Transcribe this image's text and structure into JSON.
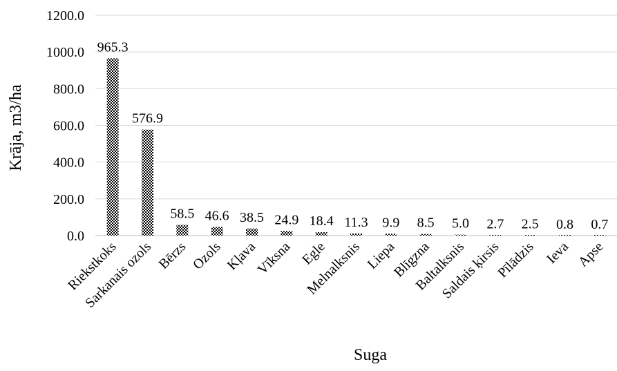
{
  "chart_data": {
    "type": "bar",
    "categories": [
      "Riekstkoks",
      "Sarkanais ozols",
      "Bērzs",
      "Ozols",
      "Kļava",
      "Vīksna",
      "Egle",
      "Melnalksnis",
      "Liepa",
      "Blīgzna",
      "Baltalksnis",
      "Saldais ķirsis",
      "Pīlādzis",
      "Ieva",
      "Apse"
    ],
    "values": [
      965.3,
      576.9,
      58.5,
      46.6,
      38.5,
      24.9,
      18.4,
      11.3,
      9.9,
      8.5,
      5.0,
      2.7,
      2.5,
      0.8,
      0.7
    ],
    "data_labels": [
      "965.3",
      "576.9",
      "58.5",
      "46.6",
      "38.5",
      "24.9",
      "18.4",
      "11.3",
      "9.9",
      "8.5",
      "5.0",
      "2.7",
      "2.5",
      "0.8",
      "0.7"
    ],
    "xlabel": "Suga",
    "ylabel": "Krāja, m3/ha",
    "ylim": [
      0,
      1200
    ],
    "yticks": [
      "0.0",
      "200.0",
      "400.0",
      "600.0",
      "800.0",
      "1000.0",
      "1200.0"
    ],
    "grid": "horizontal",
    "bar_pattern": "checkered",
    "colors": {
      "bar": "#000000",
      "grid": "#d9d9d9",
      "axis": "#bfbfbf",
      "text": "#000000"
    }
  }
}
